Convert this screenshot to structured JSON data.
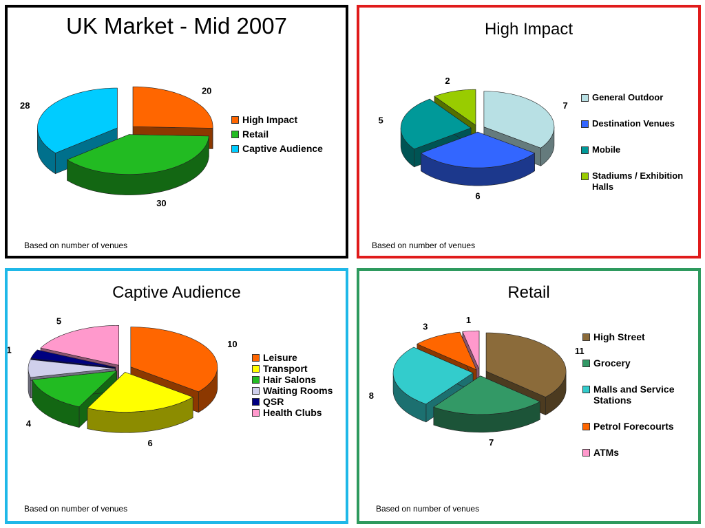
{
  "panels": [
    {
      "id": "uk-market",
      "title": "UK Market - Mid 2007",
      "border_color": "#000000",
      "note": "Based on number of venues"
    },
    {
      "id": "high-impact",
      "title": "High Impact",
      "border_color": "#e01b1b",
      "note": "Based on number of venues"
    },
    {
      "id": "captive-audience",
      "title": "Captive Audience",
      "border_color": "#1fb8e8",
      "note": "Based on number of venues"
    },
    {
      "id": "retail",
      "title": "Retail",
      "border_color": "#2e9a5e",
      "note": "Based on number of venues"
    }
  ],
  "chart_data": [
    {
      "type": "pie",
      "title": "UK Market - Mid 2007",
      "categories": [
        "High Impact",
        "Retail",
        "Captive Audience"
      ],
      "values": [
        20,
        30,
        28
      ],
      "colors": [
        "#ff6600",
        "#22bb22",
        "#00ccff"
      ],
      "exploded": true,
      "legend": "right"
    },
    {
      "type": "pie",
      "title": "High Impact",
      "categories": [
        "General Outdoor",
        "Destination Venues",
        "Mobile",
        "Stadiums / Exhibition Halls"
      ],
      "values": [
        7,
        6,
        5,
        2
      ],
      "colors": [
        "#b8e0e4",
        "#3366ff",
        "#009999",
        "#99cc00"
      ],
      "exploded": true,
      "legend": "right"
    },
    {
      "type": "pie",
      "title": "Captive Audience",
      "categories": [
        "Leisure",
        "Transport",
        "Hair Salons",
        "Waiting Rooms",
        "QSR",
        "Health Clubs"
      ],
      "values": [
        10,
        6,
        4,
        2,
        1,
        5
      ],
      "colors": [
        "#ff6600",
        "#ffff00",
        "#22bb22",
        "#d0d0ec",
        "#000080",
        "#ff99cc"
      ],
      "exploded": true,
      "legend": "right"
    },
    {
      "type": "pie",
      "title": "Retail",
      "categories": [
        "High Street",
        "Grocery",
        "Malls and Service Stations",
        "Petrol Forecourts",
        "ATMs"
      ],
      "values": [
        11,
        7,
        8,
        3,
        1
      ],
      "colors": [
        "#8b6b3a",
        "#339966",
        "#33cccc",
        "#ff6600",
        "#ff99cc"
      ],
      "exploded": true,
      "legend": "right"
    }
  ]
}
